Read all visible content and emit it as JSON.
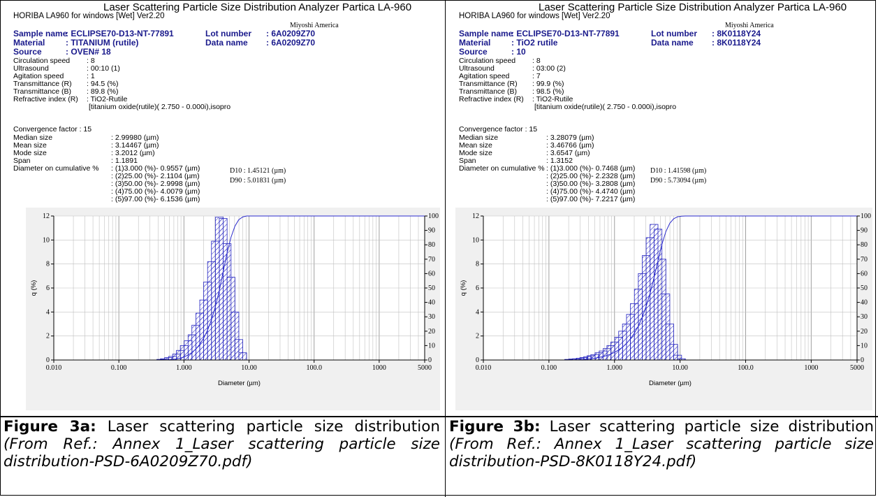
{
  "panels": [
    {
      "header": {
        "title": "Laser Scattering Particle Size Distribution Analyzer Partica LA-960",
        "software": "HORIBA LA960 for windows [Wet] Ver2.20",
        "company": "Miyoshi America"
      },
      "sample": {
        "sample_name_label": "Sample name",
        "sample_name": ": ECLIPSE70-D13-NT-77891",
        "lot_label": "Lot number",
        "lot": ":  6A0209Z70",
        "material_label": "Material",
        "material": ": TITANIUM (rutile)",
        "data_label": "Data name",
        "data": ":  6A0209Z70",
        "source_label": "Source",
        "source": ": OVEN# 18"
      },
      "params": [
        {
          "label": "Circulation speed",
          "value": ":  8"
        },
        {
          "label": "Ultrasound",
          "value": ":  00:10 (1)"
        },
        {
          "label": "Agitation speed",
          "value": ":  1"
        },
        {
          "label": "Transmittance (R)",
          "value": ":  94.5 (%)"
        },
        {
          "label": "Transmittance (B)",
          "value": ":  89.8 (%)"
        },
        {
          "label": "Refractive index (R)",
          "value": ":  TiO2-Rutile"
        },
        {
          "label": "",
          "value": "[titanium oxide(rutile)( 2.750 -  0.000i),isopro"
        }
      ],
      "convergence": {
        "label": "Convergence factor",
        "value": ":  15"
      },
      "stats": [
        {
          "label": "Median size",
          "value": ":      2.99980 (µm)"
        },
        {
          "label": "Mean size",
          "value": ":      3.14467 (µm)"
        },
        {
          "label": "Mode size",
          "value": ":      3.2012 (µm)"
        },
        {
          "label": "Span",
          "value": ":      1.1891"
        }
      ],
      "cumulative_label": "Diameter on cumulative %",
      "cumulative": [
        ":  (1)3.000 (%)-   0.9557 (µm)",
        ":  (2)25.00 (%)-   2.1104 (µm)",
        ":  (3)50.00 (%)-   2.9998 (µm)",
        ":  (4)75.00 (%)-   4.0079 (µm)",
        ":  (5)97.00 (%)-   6.1536 (µm)"
      ],
      "d10": "D10  :   1.45121 (µm)",
      "d90": "D90  :   5.01831 (µm)",
      "caption": {
        "label": "Figure 3a:",
        "text": " Laser scattering particle size distribution ",
        "ref": "(From Ref.: Annex 1_Laser scattering particle size distribution-PSD-6A0209Z70.pdf)"
      }
    },
    {
      "header": {
        "title": "Laser Scattering Particle Size Distribution Analyzer Partica LA-960",
        "software": "HORIBA LA960 for windows [Wet] Ver2.20",
        "company": "Miyoshi America"
      },
      "sample": {
        "sample_name_label": "Sample name",
        "sample_name": ": ECLIPSE70-D13-NT-77891",
        "lot_label": "Lot number",
        "lot": ":  8K0118Y24",
        "material_label": "Material",
        "material": ": TiO2 rutile",
        "data_label": "Data name",
        "data": ":  8K0118Y24",
        "source_label": "Source",
        "source": ": 10"
      },
      "params": [
        {
          "label": "Circulation speed",
          "value": ":  8"
        },
        {
          "label": "Ultrasound",
          "value": ":  03:00 (2)"
        },
        {
          "label": "Agitation speed",
          "value": ":  7"
        },
        {
          "label": "Transmittance (R)",
          "value": ":  99.9 (%)"
        },
        {
          "label": "Transmittance (B)",
          "value": ":  98.5 (%)"
        },
        {
          "label": "Refractive index (R)",
          "value": ":  TiO2-Rutile"
        },
        {
          "label": "",
          "value": "[titanium oxide(rutile)( 2.750 -  0.000i),isopro"
        }
      ],
      "convergence": {
        "label": "Convergence factor",
        "value": ":  15"
      },
      "stats": [
        {
          "label": "Median size",
          "value": ":      3.28079 (µm)"
        },
        {
          "label": "Mean size",
          "value": ":      3.46766 (µm)"
        },
        {
          "label": "Mode size",
          "value": ":      3.6547 (µm)"
        },
        {
          "label": "Span",
          "value": ":      1.3152"
        }
      ],
      "cumulative_label": "Diameter on cumulative %",
      "cumulative": [
        ":  (1)3.000 (%)-   0.7468 (µm)",
        ":  (2)25.00 (%)-   2.2328 (µm)",
        ":  (3)50.00 (%)-   3.2808 (µm)",
        ":  (4)75.00 (%)-   4.4740 (µm)",
        ":  (5)97.00 (%)-   7.2217 (µm)"
      ],
      "d10": "D10  :   1.41598 (µm)",
      "d90": "D90  :   5.73094 (µm)",
      "caption": {
        "label": "Figure 3b:",
        "text": " Laser scattering particle size distribution ",
        "ref": "(From Ref.: Annex 1_Laser scattering particle size distribution-PSD-8K0118Y24.pdf)"
      }
    }
  ],
  "colors": {
    "bars": "#1f1fbf",
    "curve": "#2a2acc",
    "chart_bg": "#f0f0f0",
    "grid": "#c0c0c0"
  },
  "chart_data": [
    {
      "type": "bar",
      "xlabel": "Diameter (µm)",
      "ylabel": "q (%)",
      "x_scale": "log",
      "xlim": [
        0.01,
        5000
      ],
      "ylim": [
        0,
        12
      ],
      "y2lim": [
        0,
        100
      ],
      "x_tick_labels": [
        "0.010",
        "0.100",
        "1.000",
        "10.00",
        "100.0",
        "1000",
        "5000"
      ],
      "y_tick_labels": [
        "0",
        "2",
        "4",
        "6",
        "8",
        "10",
        "12"
      ],
      "y2_tick_labels": [
        "0",
        "10",
        "20",
        "30",
        "40",
        "50",
        "60",
        "70",
        "80",
        "90",
        "100"
      ],
      "grid": true,
      "series": [
        {
          "x": [
            0.44,
            0.5,
            0.58,
            0.67,
            0.77,
            0.88,
            1.01,
            1.16,
            1.33,
            1.52,
            1.75,
            2.01,
            2.31,
            2.65,
            3.04,
            3.49,
            4.01,
            4.61,
            5.29,
            6.07,
            6.97,
            8.0
          ],
          "values": [
            0.05,
            0.1,
            0.2,
            0.3,
            0.5,
            0.8,
            1.2,
            1.6,
            2.1,
            2.9,
            3.9,
            5.0,
            6.5,
            8.2,
            9.9,
            11.9,
            11.8,
            9.7,
            6.9,
            4.0,
            1.7,
            0.6
          ]
        }
      ]
    },
    {
      "type": "bar",
      "xlabel": "Diameter (µm)",
      "ylabel": "q (%)",
      "x_scale": "log",
      "xlim": [
        0.01,
        5000
      ],
      "ylim": [
        0,
        12
      ],
      "y2lim": [
        0,
        100
      ],
      "x_tick_labels": [
        "0.010",
        "0.100",
        "1.000",
        "10.00",
        "100.0",
        "1000",
        "5000"
      ],
      "y_tick_labels": [
        "0",
        "2",
        "4",
        "6",
        "8",
        "10",
        "12"
      ],
      "y2_tick_labels": [
        "0",
        "10",
        "20",
        "30",
        "40",
        "50",
        "60",
        "70",
        "80",
        "90",
        "100"
      ],
      "grid": true,
      "series": [
        {
          "x": [
            0.2,
            0.23,
            0.26,
            0.3,
            0.34,
            0.39,
            0.44,
            0.5,
            0.58,
            0.67,
            0.77,
            0.88,
            1.01,
            1.16,
            1.33,
            1.52,
            1.75,
            2.01,
            2.31,
            2.65,
            3.04,
            3.49,
            4.01,
            4.61,
            5.29,
            6.07,
            6.97,
            8.0,
            9.19,
            10.5
          ],
          "values": [
            0.05,
            0.08,
            0.1,
            0.15,
            0.2,
            0.28,
            0.36,
            0.45,
            0.6,
            0.75,
            0.95,
            1.2,
            1.5,
            1.9,
            2.4,
            3.0,
            3.8,
            4.7,
            5.9,
            7.2,
            8.7,
            10.2,
            11.3,
            10.9,
            8.4,
            5.5,
            3.0,
            1.3,
            0.4,
            0.1
          ]
        }
      ]
    }
  ]
}
